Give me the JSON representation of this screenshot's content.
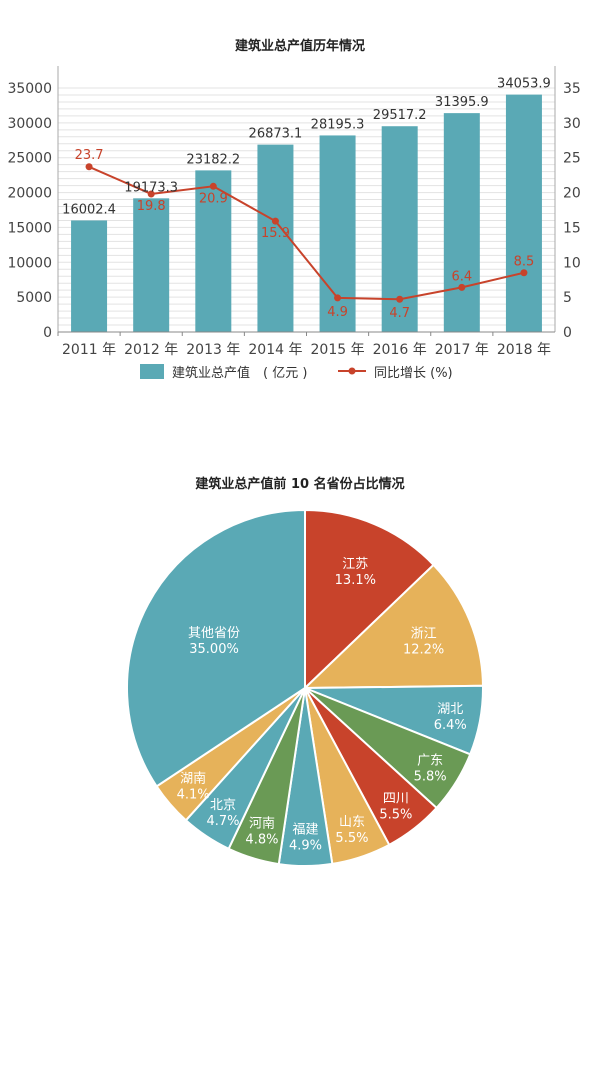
{
  "chart_data": [
    {
      "type": "bar",
      "title": "建筑业总产值历年情况",
      "categories": [
        "2011 年",
        "2012 年",
        "2013 年",
        "2014 年",
        "2015 年",
        "2016 年",
        "2017 年",
        "2018 年"
      ],
      "series": [
        {
          "name": "建筑业总产值（亿元）",
          "type": "bar",
          "axis": "left",
          "color": "#5aa9b5",
          "values": [
            16002.4,
            19173.3,
            23182.2,
            26873.1,
            28195.3,
            29517.2,
            31395.9,
            34053.9
          ],
          "labels": [
            "16002.4",
            "19173.3",
            "23182.2",
            "26873.1",
            "28195.3",
            "29517.2",
            "31395.9",
            "34053.9"
          ]
        },
        {
          "name": "同比增长 (%)",
          "type": "line",
          "axis": "right",
          "color": "#c8432b",
          "values": [
            23.7,
            19.8,
            20.9,
            15.9,
            4.9,
            4.7,
            6.4,
            8.5
          ],
          "labels": [
            "23.7",
            "19.8",
            "20.9",
            "15.9",
            "4.9",
            "4.7",
            "6.4",
            "8.5"
          ]
        }
      ],
      "y_left": {
        "range": [
          0,
          35000
        ],
        "ticks": [
          "0",
          "5000",
          "10000",
          "15000",
          "20000",
          "25000",
          "30000",
          "35000"
        ]
      },
      "y_right": {
        "range": [
          0,
          35
        ],
        "ticks": [
          "0",
          "5",
          "10",
          "15",
          "20",
          "25",
          "30",
          "35"
        ]
      },
      "grid": true,
      "legend": {
        "position": "bottom",
        "bar_label": "建筑业总产值",
        "bar_paren": "( 亿元 )",
        "line_label": "同比增长 (%)"
      }
    },
    {
      "type": "pie",
      "title": "建筑业总产值前 10 名省份占比情况",
      "slices": [
        {
          "name": "江苏",
          "value": 13.1,
          "label": "13.1%",
          "color": "#c8432b"
        },
        {
          "name": "浙江",
          "value": 12.2,
          "label": "12.2%",
          "color": "#e6b25a"
        },
        {
          "name": "湖北",
          "value": 6.4,
          "label": "6.4%",
          "color": "#5aa9b5"
        },
        {
          "name": "广东",
          "value": 5.8,
          "label": "5.8%",
          "color": "#6a9a55"
        },
        {
          "name": "四川",
          "value": 5.5,
          "label": "5.5%",
          "color": "#c8432b"
        },
        {
          "name": "山东",
          "value": 5.5,
          "label": "5.5%",
          "color": "#e6b25a"
        },
        {
          "name": "福建",
          "value": 4.9,
          "label": "4.9%",
          "color": "#5aa9b5"
        },
        {
          "name": "河南",
          "value": 4.8,
          "label": "4.8%",
          "color": "#6a9a55"
        },
        {
          "name": "北京",
          "value": 4.7,
          "label": "4.7%",
          "color": "#5aa9b5"
        },
        {
          "name": "湖南",
          "value": 4.1,
          "label": "4.1%",
          "color": "#e6b25a"
        },
        {
          "name": "其他省份",
          "value": 35.0,
          "label": "35.00%",
          "color": "#5aa9b5"
        }
      ]
    }
  ]
}
